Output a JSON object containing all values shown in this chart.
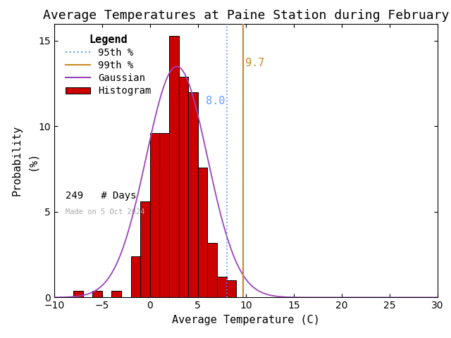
{
  "title": "Average Temperatures at Paine Station during February",
  "xlabel": "Average Temperature (C)",
  "ylabel": "Probability\n(%)",
  "xlim": [
    -10,
    30
  ],
  "ylim": [
    0,
    16
  ],
  "xticks": [
    -10,
    -5,
    0,
    5,
    10,
    15,
    20,
    25,
    30
  ],
  "yticks": [
    0,
    5,
    10,
    15
  ],
  "bin_left_edges": [
    -8,
    -7,
    -6,
    -5,
    -4,
    -3,
    -2,
    -1,
    0,
    1,
    2,
    3,
    4,
    5,
    6,
    7,
    8,
    9
  ],
  "bar_heights": [
    0.4,
    0.0,
    0.4,
    0.0,
    0.4,
    0.0,
    2.4,
    5.6,
    9.6,
    9.6,
    15.3,
    12.9,
    12.0,
    7.6,
    3.2,
    1.2,
    1.0,
    0.0
  ],
  "bar_color": "#cc0000",
  "bar_edgecolor": "#000000",
  "gaussian_mean": 2.8,
  "gaussian_std": 3.2,
  "gaussian_amplitude": 13.5,
  "p95": 8.0,
  "p99": 9.7,
  "n_days": 249,
  "made_on": "Made on 5 Oct 2024",
  "gaussian_color": "#9944bb",
  "p95_color": "#6699ff",
  "p99_color": "#cc8822",
  "p95_label_color": "#6699ff",
  "p99_label_color": "#cc8822",
  "title_fontsize": 13,
  "axis_label_fontsize": 11,
  "tick_fontsize": 10,
  "legend_fontsize": 10,
  "annotation_fontsize": 11
}
